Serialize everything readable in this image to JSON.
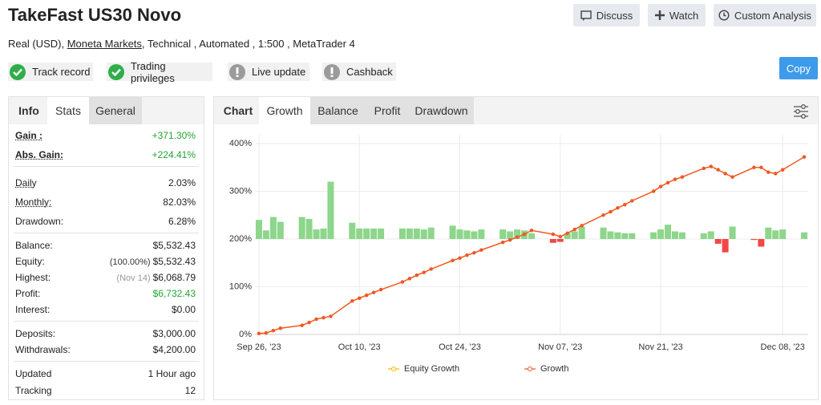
{
  "header": {
    "title": "TakeFast US30 Novo",
    "buttons": [
      "Discuss",
      "Watch",
      "Custom Analysis"
    ],
    "details": [
      "Real (USD),",
      "Moneta Markets",
      ", Technical , Automated , 1:500 , MetaTrader 4"
    ],
    "badges": [
      {
        "label": "Track record",
        "status": "ok"
      },
      {
        "label": "Trading privileges",
        "status": "ok"
      },
      {
        "label": "Live update",
        "status": "warning"
      },
      {
        "label": "Cashback",
        "status": "warning"
      }
    ],
    "copy": "Copy"
  },
  "stats_panel": {
    "tabs": [
      "Info",
      "Stats",
      "General"
    ],
    "active_tab": 1,
    "groups": [
      [
        {
          "label": "Gain :",
          "value": "+371.30%",
          "color": "#22a530"
        },
        {
          "label": "Abs. Gain:",
          "value": "+224.41%",
          "color": "#22a530"
        }
      ],
      [
        {
          "label": "Daily",
          "value": "2.03%"
        },
        {
          "label": "Monthly:",
          "value": "82.03%"
        },
        {
          "label": "Drawdown:",
          "value": "6.28%"
        }
      ],
      [
        {
          "label": "Balance:",
          "value": "$5,532.43"
        },
        {
          "label": "Equity:",
          "note": "(100.00%)",
          "value": "$5,532.43"
        },
        {
          "label": "Highest:",
          "note": "(Nov 14)",
          "value": "$6,068.79"
        },
        {
          "label": "Profit:",
          "value": "$6,732.43",
          "color": "#22a530"
        },
        {
          "label": "Interest:",
          "value": "$0.00"
        }
      ],
      [
        {
          "label": "Deposits:",
          "value": "$3,000.00"
        },
        {
          "label": "Withdrawals:",
          "value": "$4,200.00"
        }
      ],
      [
        {
          "label": "Updated",
          "value": "1 Hour ago"
        },
        {
          "label": "Tracking",
          "value": "12"
        }
      ]
    ]
  },
  "chart_panel": {
    "tabs": [
      "Chart",
      "Growth",
      "Balance",
      "Profit",
      "Drawdown"
    ],
    "active_tab": 1
  },
  "chart_data": {
    "type": "line",
    "grid": true,
    "legend": "bottom",
    "ylim": [
      0,
      400
    ],
    "yticks": [
      {
        "value": 0,
        "label": "0%"
      },
      {
        "value": 100,
        "label": "100%"
      },
      {
        "value": 200,
        "label": "200%"
      },
      {
        "value": 300,
        "label": "300%"
      },
      {
        "value": 400,
        "label": "400%"
      }
    ],
    "y2lim": [
      -10,
      10
    ],
    "xlim": [
      "2023-09-25",
      "2023-12-12"
    ],
    "xticks": [
      {
        "value": "2023-09-26",
        "label": "Sep 26, '23"
      },
      {
        "value": "2023-10-10",
        "label": "Oct 10, '23"
      },
      {
        "value": "2023-10-24",
        "label": "Oct 24, '23"
      },
      {
        "value": "2023-11-07",
        "label": "Nov 07, '23"
      },
      {
        "value": "2023-11-21",
        "label": "Nov 21, '23"
      },
      {
        "value": "2023-12-08",
        "label": "Dec 08, '23"
      }
    ],
    "x": [
      "2023-09-26",
      "2023-09-27",
      "2023-09-28",
      "2023-09-29",
      "2023-10-02",
      "2023-10-03",
      "2023-10-04",
      "2023-10-05",
      "2023-10-06",
      "2023-10-09",
      "2023-10-10",
      "2023-10-11",
      "2023-10-12",
      "2023-10-13",
      "2023-10-16",
      "2023-10-17",
      "2023-10-18",
      "2023-10-19",
      "2023-10-20",
      "2023-10-23",
      "2023-10-24",
      "2023-10-25",
      "2023-10-26",
      "2023-10-27",
      "2023-10-30",
      "2023-10-31",
      "2023-11-01",
      "2023-11-02",
      "2023-11-03",
      "2023-11-06",
      "2023-11-07",
      "2023-11-08",
      "2023-11-09",
      "2023-11-10",
      "2023-11-13",
      "2023-11-14",
      "2023-11-15",
      "2023-11-16",
      "2023-11-17",
      "2023-11-20",
      "2023-11-21",
      "2023-11-22",
      "2023-11-23",
      "2023-11-24",
      "2023-11-27",
      "2023-11-28",
      "2023-11-29",
      "2023-11-30",
      "2023-12-01",
      "2023-12-04",
      "2023-12-05",
      "2023-12-06",
      "2023-12-07",
      "2023-12-08",
      "2023-12-11"
    ],
    "series": [
      {
        "name": "Equity Growth",
        "color": "#f5b800",
        "values": [
          2,
          3,
          8,
          13,
          19,
          25,
          32,
          35,
          38,
          70,
          76,
          82,
          88,
          94,
          110,
          117,
          124,
          130,
          137,
          155,
          160,
          166,
          171,
          177,
          193,
          198,
          204,
          210,
          218,
          210,
          205,
          212,
          220,
          228,
          250,
          257,
          265,
          272,
          280,
          300,
          310,
          318,
          325,
          330,
          348,
          352,
          345,
          337,
          330,
          350,
          350,
          340,
          337,
          345,
          372
        ]
      },
      {
        "name": "Growth",
        "color": "#f0562a",
        "values": [
          2,
          3,
          8,
          13,
          19,
          25,
          32,
          35,
          38,
          70,
          76,
          82,
          88,
          94,
          110,
          117,
          124,
          130,
          137,
          155,
          160,
          166,
          171,
          177,
          193,
          198,
          204,
          210,
          218,
          210,
          205,
          212,
          220,
          228,
          250,
          257,
          265,
          272,
          280,
          300,
          310,
          318,
          325,
          330,
          348,
          352,
          345,
          337,
          330,
          350,
          350,
          340,
          337,
          345,
          372
        ]
      },
      {
        "type": "bar",
        "axis": "y2",
        "color": "#8dd68b",
        "negative_color": "#f04848",
        "values": [
          2.0,
          0.9,
          2.3,
          1.8,
          2.3,
          2.1,
          1.0,
          1.1,
          6.0,
          1.7,
          1.1,
          1.1,
          1.1,
          1.1,
          1.1,
          1.1,
          1.1,
          1.0,
          1.2,
          1.4,
          1.0,
          0.9,
          0.8,
          1.0,
          1.0,
          0.8,
          1.0,
          0.9,
          0.6,
          -0.4,
          -0.3,
          0.6,
          0.8,
          1.3,
          1.2,
          0.8,
          0.7,
          0.6,
          0.6,
          0.7,
          1.0,
          1.5,
          0.8,
          0.7,
          0.6,
          0.8,
          -0.5,
          -1.4,
          1.3,
          -0.1,
          -0.8,
          1.2,
          0.9,
          1.0,
          0.7
        ]
      }
    ]
  }
}
